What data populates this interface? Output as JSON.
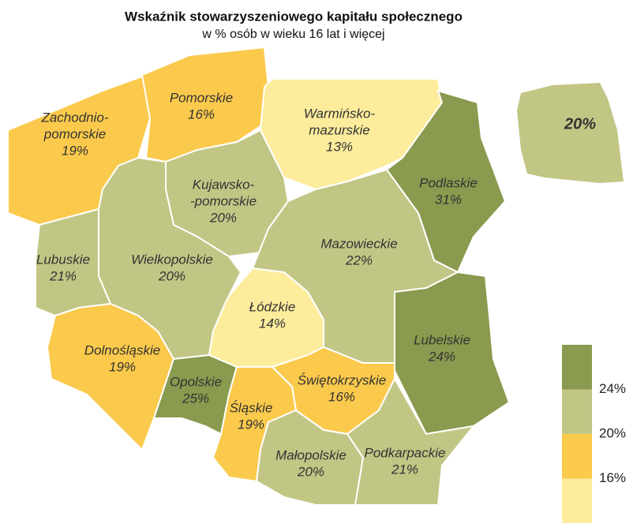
{
  "map": {
    "title": "Wskaźnik stowarzyszeniowego kapitału społecznego",
    "subtitle": "w % osób w wieku 16 lat i więcej",
    "regions": [
      {
        "name": [
          "Zachodnio-",
          "pomorskie"
        ],
        "value": 19,
        "label": "19%"
      },
      {
        "name": [
          "Pomorskie"
        ],
        "value": 16,
        "label": "16%"
      },
      {
        "name": [
          "Warmińsko-",
          "mazurskie"
        ],
        "value": 13,
        "label": "13%"
      },
      {
        "name": [
          "Podlaskie"
        ],
        "value": 31,
        "label": "31%"
      },
      {
        "name": [
          "Kujawsko-",
          "-pomorskie"
        ],
        "value": 20,
        "label": "20%"
      },
      {
        "name": [
          "Wielkopolskie"
        ],
        "value": 20,
        "label": "20%"
      },
      {
        "name": [
          "Lubuskie"
        ],
        "value": 21,
        "label": "21%"
      },
      {
        "name": [
          "Dolnośląskie"
        ],
        "value": 19,
        "label": "19%"
      },
      {
        "name": [
          "Opolskie"
        ],
        "value": 25,
        "label": "25%"
      },
      {
        "name": [
          "Łódzkie"
        ],
        "value": 14,
        "label": "14%"
      },
      {
        "name": [
          "Mazowieckie"
        ],
        "value": 22,
        "label": "22%"
      },
      {
        "name": [
          "Lubelskie"
        ],
        "value": 24,
        "label": "24%"
      },
      {
        "name": [
          "Świętokrzyskie"
        ],
        "value": 16,
        "label": "16%"
      },
      {
        "name": [
          "Śląskie"
        ],
        "value": 19,
        "label": "19%"
      },
      {
        "name": [
          "Małopolskie"
        ],
        "value": 20,
        "label": "20%"
      },
      {
        "name": [
          "Podkarpackie"
        ],
        "value": 21,
        "label": "21%"
      }
    ],
    "national": {
      "value": 20,
      "label": "20%"
    },
    "legend": {
      "colors": [
        "#8a9a4e",
        "#c2c685",
        "#fbca4c",
        "#fdec9c"
      ],
      "breaks": [
        {
          "value": 24,
          "label": "24%"
        },
        {
          "value": 20,
          "label": "20%"
        },
        {
          "value": 16,
          "label": "16%"
        }
      ]
    }
  }
}
